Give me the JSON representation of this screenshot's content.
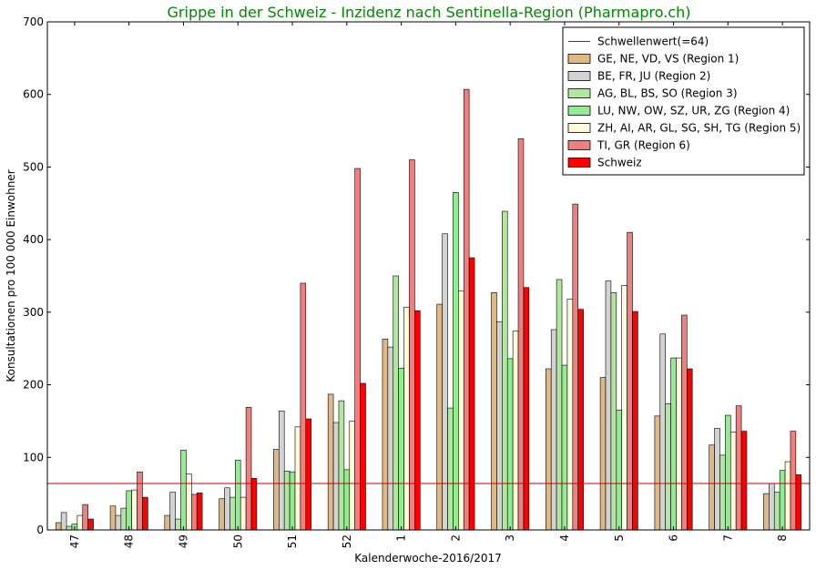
{
  "chart_data": {
    "type": "bar",
    "title": "Grippe in der Schweiz - Inzidenz nach Sentinella-Region (Pharmapro.ch)",
    "title_color": "#008800",
    "xlabel": "Kalenderwoche-2016/2017",
    "ylabel": "Konsultationen pro 100 000 Einwohner",
    "ylim": [
      0,
      700
    ],
    "yticks": [
      0,
      100,
      200,
      300,
      400,
      500,
      600,
      700
    ],
    "categories": [
      "47",
      "48",
      "49",
      "50",
      "51",
      "52",
      "1",
      "2",
      "3",
      "4",
      "5",
      "6",
      "7",
      "8"
    ],
    "threshold": {
      "name": "Schwellenwert(=64)",
      "value": 64,
      "color": "#cc0000"
    },
    "legend_position": "top-right",
    "grid": false,
    "series": [
      {
        "name": "GE, NE, VD, VS (Region 1)",
        "color": "#deb887",
        "values": [
          10,
          33,
          20,
          43,
          111,
          187,
          263,
          311,
          327,
          222,
          210,
          157,
          117,
          50
        ]
      },
      {
        "name": "BE, FR, JU (Region 2)",
        "color": "#d3d3d3",
        "values": [
          24,
          20,
          52,
          58,
          164,
          148,
          252,
          408,
          287,
          276,
          343,
          270,
          140,
          64
        ]
      },
      {
        "name": "AG, BL, BS, SO (Region 3)",
        "color": "#b2e6a2",
        "values": [
          5,
          30,
          15,
          45,
          81,
          178,
          350,
          168,
          439,
          345,
          327,
          174,
          103,
          52
        ]
      },
      {
        "name": "LU, NW, OW, SZ, UR, ZG (Region 4)",
        "color": "#90ee90",
        "values": [
          8,
          54,
          110,
          96,
          80,
          83,
          223,
          465,
          236,
          227,
          165,
          237,
          158,
          82
        ]
      },
      {
        "name": "ZH, AI, AR, GL, SG, SH, TG (Region 5)",
        "color": "#fffadc",
        "values": [
          20,
          55,
          77,
          45,
          142,
          150,
          307,
          329,
          274,
          318,
          337,
          237,
          135,
          94
        ]
      },
      {
        "name": "TI, GR (Region 6)",
        "color": "#f08080",
        "values": [
          35,
          80,
          49,
          169,
          340,
          498,
          510,
          607,
          539,
          449,
          410,
          296,
          171,
          136
        ]
      },
      {
        "name": "Schweiz",
        "color": "#ff0000",
        "values": [
          15,
          45,
          51,
          71,
          153,
          202,
          302,
          375,
          334,
          304,
          301,
          222,
          136,
          76
        ]
      }
    ]
  }
}
